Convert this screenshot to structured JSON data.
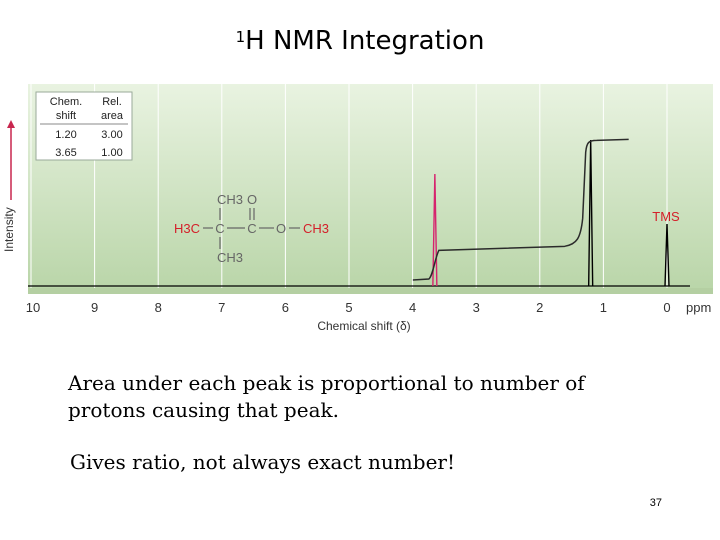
{
  "slide": {
    "title_sup": "1",
    "title_main": "H NMR Integration",
    "bullet1": "Area under each peak is proportional to number of protons causing that peak.",
    "bullet2": "Gives ratio, not always exact number!",
    "page_number": "37"
  },
  "colors": {
    "plot_bg_top": "#e9f3e1",
    "plot_bg_bottom": "#b9d5a8",
    "grid": "#ffffff",
    "trace": "#000000",
    "integral": "#2b2b2b",
    "highlight": "#d6246e",
    "structure_red": "#d4202a",
    "structure_gray": "#666666",
    "axis_arrow": "#c8264e"
  },
  "chart_data": {
    "type": "line",
    "title": "",
    "xlabel": "Chemical shift (δ)",
    "ylabel": "Intensity",
    "x_unit": "ppm",
    "x_reversed": true,
    "xlim": [
      10,
      0
    ],
    "x_ticks": [
      "10",
      "9",
      "8",
      "7",
      "6",
      "5",
      "4",
      "3",
      "2",
      "1",
      "0"
    ],
    "grid": true,
    "peaks": [
      {
        "shift": 3.65,
        "label": ""
      },
      {
        "shift": 1.2,
        "label": ""
      },
      {
        "shift": 0.0,
        "label": "TMS"
      }
    ],
    "integral_steps": [
      {
        "shift": 3.65,
        "relative_area": 1.0
      },
      {
        "shift": 1.2,
        "relative_area": 3.0
      }
    ],
    "table": {
      "headers": [
        [
          "Chem.",
          "shift"
        ],
        [
          "Rel.",
          "area"
        ]
      ],
      "rows": [
        [
          "1.20",
          "3.00"
        ],
        [
          "3.65",
          "1.00"
        ]
      ]
    },
    "structure": {
      "top": "CH3",
      "carbonyl_o": "O",
      "left": "H3C",
      "c1": "C",
      "c2": "C",
      "o": "O",
      "right": "CH3",
      "bottom": "CH3"
    }
  }
}
